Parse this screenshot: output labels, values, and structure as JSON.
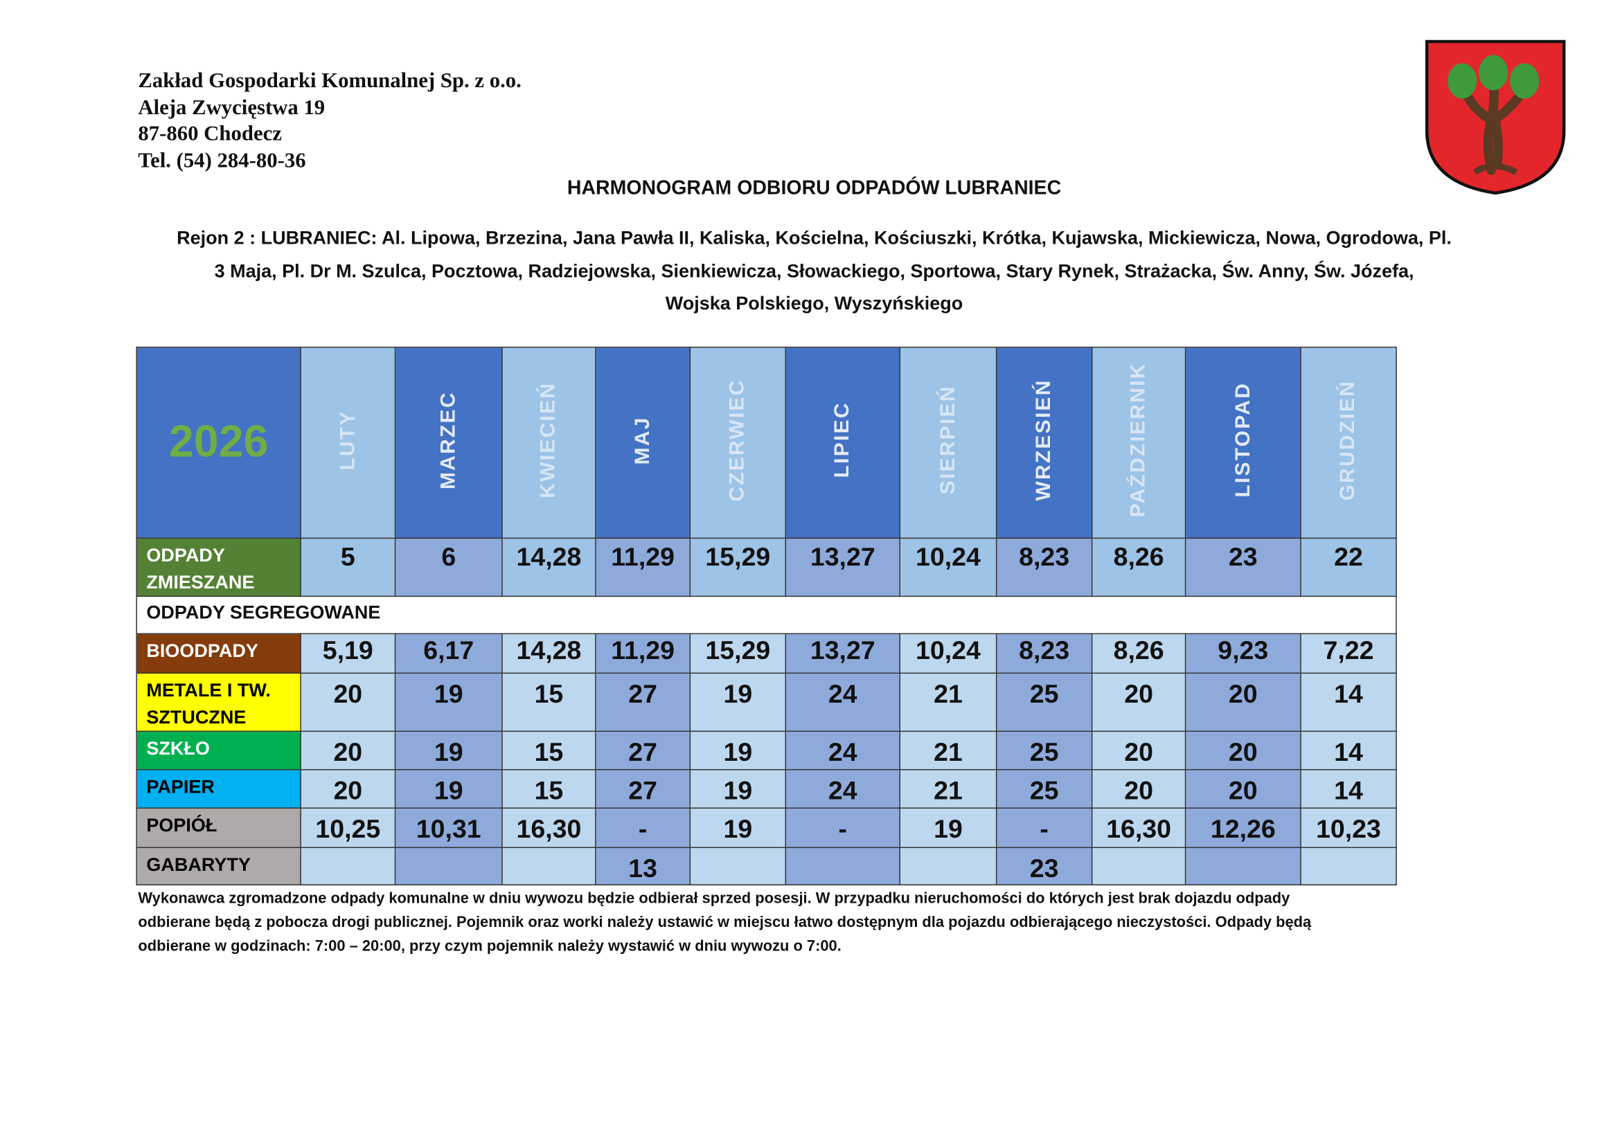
{
  "header": {
    "company": "Zakład Gospodarki Komunalnej Sp. z o.o.",
    "address": "Aleja Zwycięstwa 19",
    "city": "87-860 Chodecz",
    "phone": "Tel. (54) 284-80-36"
  },
  "title": "HARMONOGRAM ODBIORU ODPADÓW LUBRANIEC",
  "region": [
    "Rejon 2 : LUBRANIEC: Al. Lipowa, Brzezina, Jana Pawła II, Kaliska, Kościelna, Kościuszki, Krótka, Kujawska, Mickiewicza, Nowa, Ogrodowa, Pl.",
    "3 Maja, Pl. Dr M. Szulca, Pocztowa, Radziejowska, Sienkiewicza, Słowackiego, Sportowa, Stary Rynek, Strażacka, Św. Anny, Św. Józefa,",
    "Wojska Polskiego, Wyszyńskiego"
  ],
  "table": {
    "year": "2026",
    "months": [
      "LUTY",
      "MARZEC",
      "KWIECIEŃ",
      "MAJ",
      "CZERWIEC",
      "LIPIEC",
      "SIERPIEŃ",
      "WRZESIEŃ",
      "PAŹDZIERNIK",
      "LISTOPAD",
      "GRUDZIEŃ"
    ],
    "rows": [
      {
        "label": "ODPADY ZMIESZANE",
        "cells": [
          "5",
          "6",
          "14,28",
          "11,29",
          "15,29",
          "13,27",
          "10,24",
          "8,23",
          "8,26",
          "23",
          "22"
        ]
      },
      {
        "section": "ODPADY SEGREGOWANE"
      },
      {
        "label": "BIOODPADY",
        "cells": [
          "5,19",
          "6,17",
          "14,28",
          "11,29",
          "15,29",
          "13,27",
          "10,24",
          "8,23",
          "8,26",
          "9,23",
          "7,22"
        ]
      },
      {
        "label": "METALE I TW. SZTUCZNE",
        "cells": [
          "20",
          "19",
          "15",
          "27",
          "19",
          "24",
          "21",
          "25",
          "20",
          "20",
          "14"
        ]
      },
      {
        "label": "SZKŁO",
        "cells": [
          "20",
          "19",
          "15",
          "27",
          "19",
          "24",
          "21",
          "25",
          "20",
          "20",
          "14"
        ]
      },
      {
        "label": "PAPIER",
        "cells": [
          "20",
          "19",
          "15",
          "27",
          "19",
          "24",
          "21",
          "25",
          "20",
          "20",
          "14"
        ]
      },
      {
        "label": "POPIÓŁ",
        "cells": [
          "10,25",
          "10,31",
          "16,30",
          "-",
          "19",
          "-",
          "19",
          "-",
          "16,30",
          "12,26",
          "10,23"
        ]
      },
      {
        "label": "GABARYTY",
        "cells": [
          null,
          null,
          null,
          "13",
          null,
          null,
          null,
          "23",
          null,
          null,
          null
        ]
      }
    ]
  },
  "footer": [
    "Wykonawca zgromadzone odpady komunalne w dniu wywozu będzie odbierał sprzed posesji. W przypadku nieruchomości do których jest brak dojazdu odpady",
    "odbierane będą z pobocza drogi publicznej. Pojemnik oraz worki należy ustawić w miejscu łatwo dostępnym dla pojazdu odbierającego nieczystości. Odpady będą",
    "odbierane w godzinach: 7:00 – 20:00, przy czym pojemnik należy wystawić w dniu wywozu o 7:00."
  ]
}
